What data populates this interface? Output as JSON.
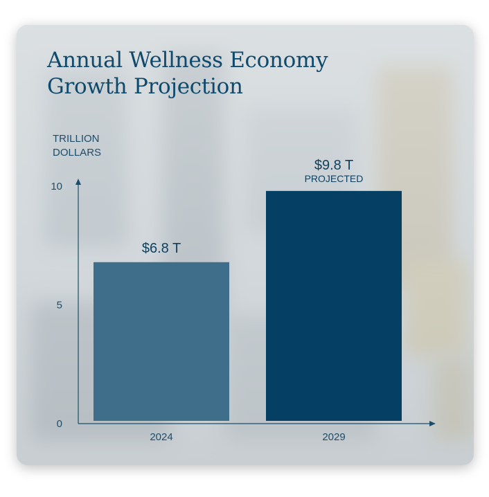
{
  "title": "Annual Wellness Economy Growth Projection",
  "y_unit_label_line1": "TRILLION",
  "y_unit_label_line2": "DOLLARS",
  "colors": {
    "bar_2024": "#3f6e8a",
    "bar_2029": "#053f63",
    "axis": "#1d4c6a",
    "title": "#0f4a6d"
  },
  "chart_data": {
    "type": "bar",
    "title": "Annual Wellness Economy Growth Projection",
    "ylabel": "TRILLION DOLLARS",
    "xlabel": "",
    "categories": [
      "2024",
      "2029"
    ],
    "values": [
      6.8,
      9.8
    ],
    "value_labels": [
      "$6.8 T",
      "$9.8 T"
    ],
    "value_notes": [
      "",
      "PROJECTED"
    ],
    "yticks": [
      0,
      5,
      10
    ],
    "ylim": [
      0,
      10
    ],
    "grid": false,
    "legend": "none"
  }
}
